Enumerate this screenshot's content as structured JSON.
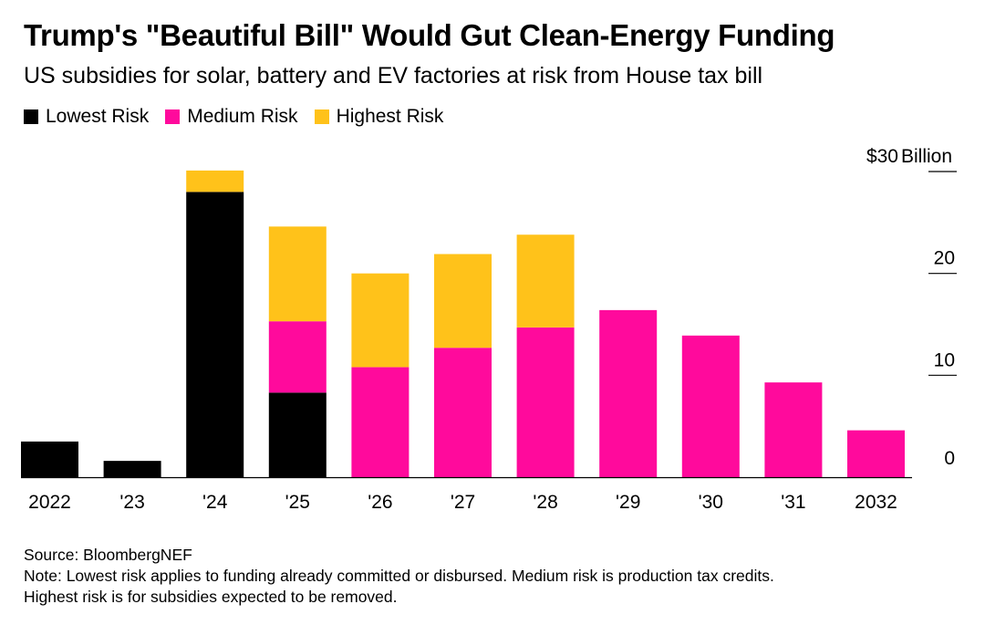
{
  "title": "Trump's \"Beautiful Bill\" Would Gut Clean-Energy Funding",
  "subtitle": "US subsidies for solar, battery and EV factories at risk from House tax bill",
  "source": "Source: BloombergNEF",
  "note_line1": "Note: Lowest risk applies to funding already committed or disbursed. Medium risk is production tax credits.",
  "note_line2": "Highest risk is for subsidies expected to be removed.",
  "colors": {
    "lowest": "#000000",
    "medium": "#ff0a9c",
    "highest": "#ffc21a"
  },
  "chart_data": {
    "type": "bar",
    "stacked": true,
    "categories": [
      "2022",
      "'23",
      "'24",
      "'25",
      "'26",
      "'27",
      "'28",
      "'29",
      "'30",
      "'31",
      "2032"
    ],
    "series": [
      {
        "name": "Lowest Risk",
        "color": "#000000",
        "values": [
          3.5,
          1.6,
          28.0,
          8.3,
          0,
          0,
          0,
          0,
          0,
          0,
          0
        ]
      },
      {
        "name": "Medium Risk",
        "color": "#ff0a9c",
        "values": [
          0,
          0,
          0,
          7.0,
          10.8,
          12.7,
          14.7,
          16.4,
          13.9,
          9.3,
          4.6
        ]
      },
      {
        "name": "Highest Risk",
        "color": "#ffc21a",
        "values": [
          0,
          0,
          2.1,
          9.3,
          9.2,
          9.2,
          9.1,
          0,
          0,
          0,
          0
        ]
      }
    ],
    "y_unit_label": "Billion",
    "y_ticks": [
      {
        "value": 0,
        "label": "0"
      },
      {
        "value": 10,
        "label": "10"
      },
      {
        "value": 20,
        "label": "20"
      },
      {
        "value": 30,
        "label": "$30"
      }
    ],
    "ylim": [
      0,
      30
    ],
    "y_axis_side": "right",
    "legend_position": "top-left",
    "grid": false
  }
}
